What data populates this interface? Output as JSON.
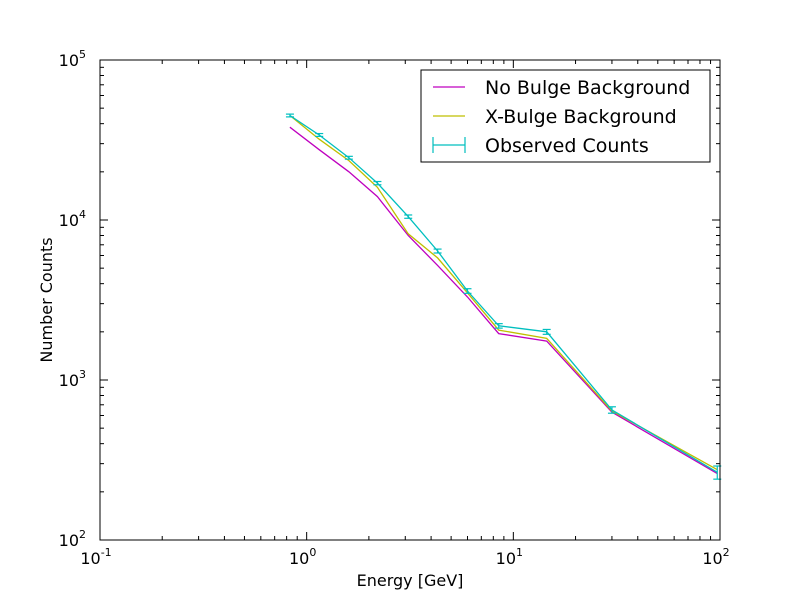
{
  "chart_data": {
    "type": "line",
    "xlabel": "Energy [GeV]",
    "ylabel": "Number Counts",
    "xscale": "log",
    "yscale": "log",
    "xlim": [
      0.1,
      100
    ],
    "ylim": [
      100,
      100000
    ],
    "x_ticks": [
      {
        "value": 0.1,
        "base": "10",
        "exp": "-1"
      },
      {
        "value": 1,
        "base": "10",
        "exp": "0"
      },
      {
        "value": 10,
        "base": "10",
        "exp": "1"
      },
      {
        "value": 100,
        "base": "10",
        "exp": "2"
      }
    ],
    "y_ticks": [
      {
        "value": 100,
        "base": "10",
        "exp": "2"
      },
      {
        "value": 1000,
        "base": "10",
        "exp": "3"
      },
      {
        "value": 10000,
        "base": "10",
        "exp": "4"
      },
      {
        "value": 100000,
        "base": "10",
        "exp": "5"
      }
    ],
    "legend_position": "top-right",
    "grid": false,
    "series": [
      {
        "name": "No Bulge Background",
        "kind": "line",
        "color": "#bf00bf",
        "x": [
          0.83,
          1.15,
          1.6,
          2.2,
          3.1,
          4.3,
          6.0,
          8.5,
          14.5,
          30,
          97
        ],
        "y": [
          38000,
          27500,
          20000,
          14000,
          8000,
          5200,
          3300,
          1950,
          1750,
          630,
          260
        ]
      },
      {
        "name": "X-Bulge Background",
        "kind": "line",
        "color": "#bfbf00",
        "x": [
          0.83,
          1.15,
          1.6,
          2.2,
          3.1,
          4.3,
          6.0,
          8.5,
          14.5,
          30,
          97
        ],
        "y": [
          45000,
          32000,
          23500,
          16000,
          8200,
          5800,
          3500,
          2050,
          1820,
          640,
          275
        ]
      },
      {
        "name": "Observed Counts",
        "kind": "errorbar",
        "color": "#00bfbf",
        "x": [
          0.83,
          1.15,
          1.6,
          2.2,
          3.1,
          4.3,
          6.0,
          8.5,
          14.5,
          30,
          97
        ],
        "y": [
          45000,
          34000,
          24500,
          17000,
          10500,
          6400,
          3600,
          2180,
          2000,
          650,
          265
        ],
        "yerr": [
          900,
          700,
          500,
          400,
          250,
          180,
          120,
          70,
          70,
          30,
          25
        ]
      }
    ]
  }
}
